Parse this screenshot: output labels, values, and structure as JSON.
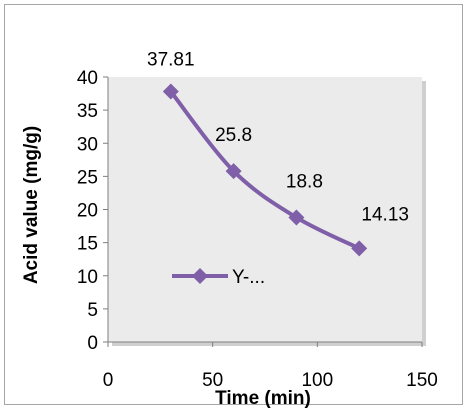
{
  "chart_data": {
    "type": "line",
    "title": "",
    "xlabel": "Time (min)",
    "ylabel": "Acid value (mg/g)",
    "xlim": [
      0,
      150
    ],
    "ylim": [
      0,
      40
    ],
    "xticks": [
      0,
      50,
      100,
      150
    ],
    "yticks": [
      0,
      5,
      10,
      15,
      20,
      25,
      30,
      35,
      40
    ],
    "grid": false,
    "legend_position": "left",
    "series": [
      {
        "name": "Y-...",
        "color": "#7f5fa8",
        "marker": "diamond",
        "x": [
          30,
          60,
          90,
          120
        ],
        "y": [
          37.81,
          25.8,
          18.8,
          14.13
        ],
        "labels": [
          "37.81",
          "25.8",
          "18.8",
          "14.13"
        ]
      }
    ],
    "colors": {
      "plot_area": "#ebebeb",
      "axis": "#7f7f7f",
      "frame": "#a6a6a6"
    }
  }
}
